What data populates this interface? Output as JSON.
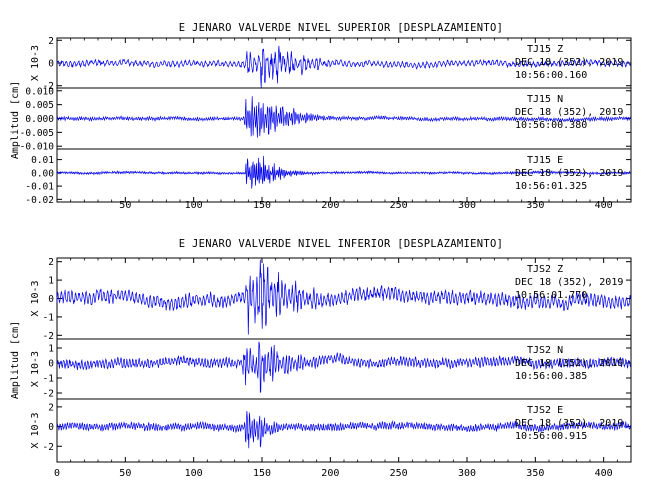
{
  "colors": {
    "trace": "#0000ee",
    "axes": "#000000",
    "background": "#ffffff"
  },
  "chart_data": [
    {
      "type": "line",
      "title": "E JENARO VALVERDE NIVEL SUPERIOR [DESPLAZAMIENTO]",
      "ylabel": "Amplitud [cm]",
      "xlim": [
        0,
        420
      ],
      "x_ticks": [
        "50",
        "100",
        "150",
        "200",
        "250",
        "300",
        "350",
        "400"
      ],
      "panels": [
        {
          "channel": "TJ15   Z",
          "date": "DEC 18 (352), 2019",
          "time": "10:56:00.160",
          "scale_label": "X 10-3",
          "ylim": [
            -2.2,
            2.2
          ],
          "y_ticks": [
            "2",
            "0",
            "-2"
          ],
          "envelope": {
            "noise": 0.25,
            "onset_x": 138,
            "onset_end_x": 160,
            "peak": 2.0,
            "decay": 25,
            "period": 3.0,
            "coda_period": 5
          }
        },
        {
          "channel": "TJ15   N",
          "date": "DEC 18 (352), 2019",
          "time": "10:56:00.380",
          "scale_label": "",
          "ylim": [
            -0.011,
            0.011
          ],
          "y_ticks": [
            "0.010",
            "0.005",
            "0.000",
            "-0.005",
            "-0.010"
          ],
          "envelope": {
            "noise": 0.0006,
            "onset_x": 137,
            "onset_end_x": 150,
            "peak": 0.009,
            "decay": 22,
            "period": 1.6,
            "coda_period": 2.2
          }
        },
        {
          "channel": "TJ15   E",
          "date": "DEC 18 (352), 2019",
          "time": "10:56:01.325",
          "scale_label": "",
          "ylim": [
            -0.022,
            0.018
          ],
          "y_ticks": [
            "0.01",
            "0.00",
            "-0.01",
            "-0.02"
          ],
          "envelope": {
            "noise": 0.0008,
            "onset_x": 138,
            "onset_end_x": 146,
            "peak": 0.016,
            "decay": 16,
            "period": 1.3,
            "coda_period": 2.0
          }
        }
      ]
    },
    {
      "type": "line",
      "title": "E JENARO VALVERDE NIVEL INFERIOR [DESPLAZAMIENTO]",
      "ylabel": "Amplitud [cm]",
      "xlim": [
        0,
        420
      ],
      "x_ticks": [
        "0",
        "50",
        "100",
        "150",
        "200",
        "250",
        "300",
        "350",
        "400"
      ],
      "panels": [
        {
          "channel": "TJS2   Z",
          "date": "DEC 18 (352), 2019",
          "time": "10:56:01.770",
          "scale_label": "X 10-3",
          "ylim": [
            -2.2,
            2.2
          ],
          "y_ticks": [
            "2",
            "1",
            "0",
            "-1",
            "-2"
          ],
          "envelope": {
            "noise": 0.35,
            "onset_x": 137,
            "onset_end_x": 150,
            "peak": 2.1,
            "decay": 30,
            "period": 2.6,
            "coda_period": 6
          }
        },
        {
          "channel": "TJS2   N",
          "date": "DEC 18 (352), 2019",
          "time": "10:56:00.385",
          "scale_label": "X 10-3",
          "ylim": [
            -2.4,
            1.6
          ],
          "y_ticks": [
            "1",
            "0",
            "-1",
            "-2"
          ],
          "envelope": {
            "noise": 0.3,
            "onset_x": 136,
            "onset_end_x": 150,
            "peak": 1.7,
            "decay": 28,
            "period": 2.2,
            "coda_period": 5
          }
        },
        {
          "channel": "TJS2   E",
          "date": "DEC 18 (352), 2019",
          "time": "10:56:00.915",
          "scale_label": "X 10-3",
          "ylim": [
            -3.6,
            2.8
          ],
          "y_ticks": [
            "2",
            "0",
            "-2"
          ],
          "envelope": {
            "noise": 0.35,
            "onset_x": 137,
            "onset_end_x": 145,
            "peak": 2.6,
            "decay": 12,
            "period": 1.8,
            "coda_period": 5
          }
        }
      ]
    }
  ]
}
